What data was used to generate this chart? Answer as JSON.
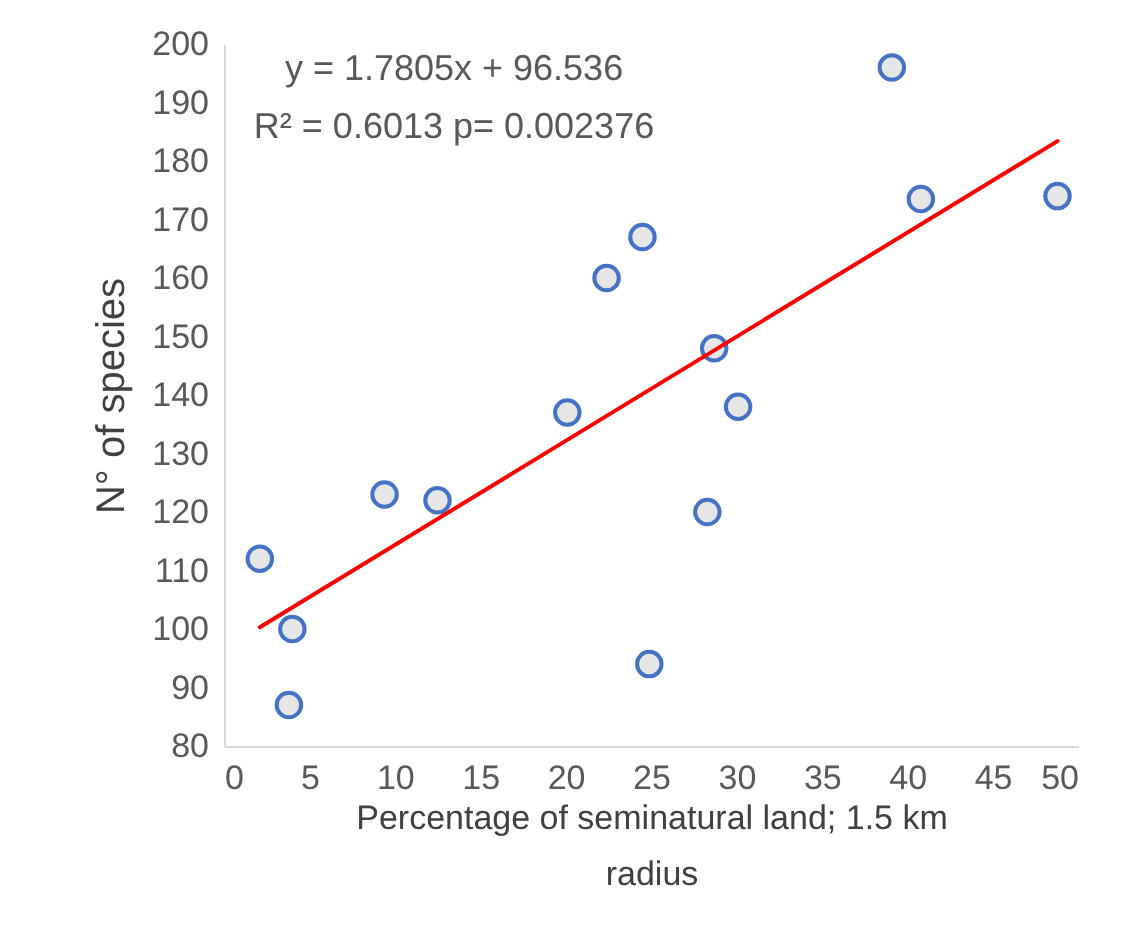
{
  "chart_data": {
    "type": "scatter",
    "xlabel": "Percentage of seminatural land; 1.5 km radius",
    "ylabel": "N° of species",
    "annotations": [
      "y = 1.7805x + 96.536",
      "R² = 0.6013 p= 0.002376"
    ],
    "xlim": [
      0,
      50
    ],
    "xticks": [
      0,
      5,
      10,
      15,
      20,
      25,
      30,
      35,
      40,
      45,
      50
    ],
    "ylim": [
      80,
      200
    ],
    "yticks": [
      80,
      90,
      100,
      110,
      120,
      130,
      140,
      150,
      160,
      170,
      180,
      190,
      200
    ],
    "grid": false,
    "series": [
      {
        "color": "#4472c4",
        "marker": "circle",
        "x": [
          2.1,
          4.0,
          3.8,
          9.4,
          12.5,
          20.1,
          22.4,
          24.5,
          24.9,
          28.7,
          28.3,
          30.1,
          39.1,
          40.8,
          48.8
        ],
        "values": [
          112,
          100,
          87,
          123,
          122,
          137,
          160,
          167,
          94,
          148,
          120,
          138,
          196,
          173.5,
          174
        ]
      },
      {
        "type": "line",
        "color": "#ff0000",
        "line_style": "solid",
        "x": [
          2.1,
          48.8
        ],
        "values": [
          100.3,
          183.4
        ]
      }
    ]
  }
}
